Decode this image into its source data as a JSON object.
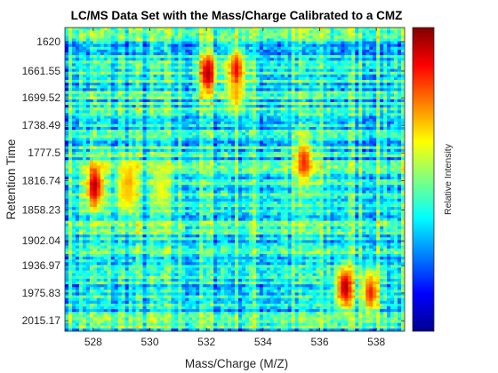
{
  "chart_data": {
    "type": "heatmap",
    "title": "LC/MS Data Set with the Mass/Charge Calibrated to a CMZ",
    "xlabel": "Mass/Charge (M/Z)",
    "ylabel": "Retention Time",
    "colorbar_label": "Relative Intensity",
    "colormap": "jet",
    "xlim": [
      527,
      539
    ],
    "ylim": [
      1600,
      2030
    ],
    "y_direction": "reverse",
    "x_ticks": [
      528,
      530,
      532,
      534,
      536,
      538
    ],
    "x_tick_labels": [
      "528",
      "530",
      "532",
      "534",
      "536",
      "538"
    ],
    "y_ticks": [
      1620,
      1661.55,
      1699.52,
      1738.49,
      1777.5,
      1816.74,
      1858.23,
      1902.04,
      1936.97,
      1975.83,
      2015.17
    ],
    "y_tick_labels": [
      "1620",
      "1661.55",
      "1699.52",
      "1738.49",
      "1777.5",
      "1816.74",
      "1858.23",
      "1902.04",
      "1936.97",
      "1975.83",
      "2015.17"
    ],
    "peaks": [
      {
        "mz": 528.05,
        "rt": 1825,
        "intensity": 0.95
      },
      {
        "mz": 529.25,
        "rt": 1818,
        "intensity": 0.72
      },
      {
        "mz": 529.2,
        "rt": 1833,
        "intensity": 0.68
      },
      {
        "mz": 530.4,
        "rt": 1829,
        "intensity": 0.62
      },
      {
        "mz": 532.05,
        "rt": 1665,
        "intensity": 0.96
      },
      {
        "mz": 533.05,
        "rt": 1660,
        "intensity": 0.88
      },
      {
        "mz": 533.05,
        "rt": 1690,
        "intensity": 0.7
      },
      {
        "mz": 535.45,
        "rt": 1790,
        "intensity": 0.84
      },
      {
        "mz": 536.9,
        "rt": 1968,
        "intensity": 0.96
      },
      {
        "mz": 537.8,
        "rt": 1975,
        "intensity": 0.85
      }
    ],
    "colors": {
      "axis": "#262626",
      "background": "#ffffff"
    }
  }
}
